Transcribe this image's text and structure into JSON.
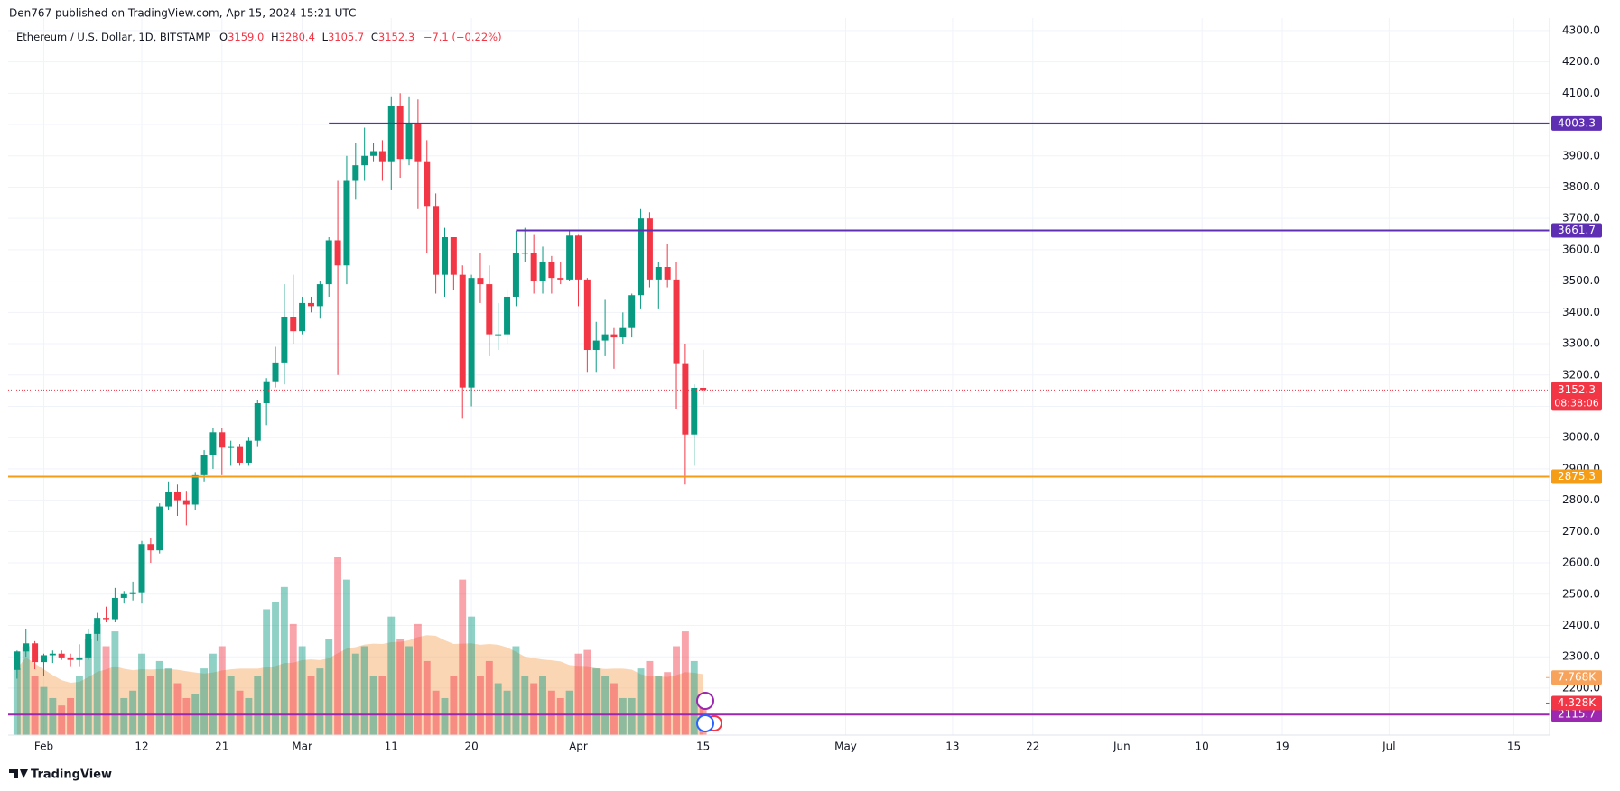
{
  "header": "Den767 published on TradingView.com, Apr 15, 2024 15:21 UTC",
  "footer": "TradingView",
  "chart_data": {
    "type": "candlestick",
    "title": "Ethereum / U.S. Dollar, 1D, BITSTAMP",
    "legend": {
      "keys": [
        "O",
        "H",
        "L",
        "C"
      ],
      "values": [
        "3159.0",
        "3280.4",
        "3105.7",
        "3152.3"
      ],
      "change": "−7.1 (−0.22%)"
    },
    "up_color": "#089981",
    "down_color": "#f23645",
    "x": [
      "2024-01-29",
      "2024-01-30",
      "2024-01-31",
      "2024-02-01",
      "2024-02-02",
      "2024-02-03",
      "2024-02-04",
      "2024-02-05",
      "2024-02-06",
      "2024-02-07",
      "2024-02-08",
      "2024-02-09",
      "2024-02-10",
      "2024-02-11",
      "2024-02-12",
      "2024-02-13",
      "2024-02-14",
      "2024-02-15",
      "2024-02-16",
      "2024-02-17",
      "2024-02-18",
      "2024-02-19",
      "2024-02-20",
      "2024-02-21",
      "2024-02-22",
      "2024-02-23",
      "2024-02-24",
      "2024-02-25",
      "2024-02-26",
      "2024-02-27",
      "2024-02-28",
      "2024-02-29",
      "2024-03-01",
      "2024-03-02",
      "2024-03-03",
      "2024-03-04",
      "2024-03-05",
      "2024-03-06",
      "2024-03-07",
      "2024-03-08",
      "2024-03-09",
      "2024-03-10",
      "2024-03-11",
      "2024-03-12",
      "2024-03-13",
      "2024-03-14",
      "2024-03-15",
      "2024-03-16",
      "2024-03-17",
      "2024-03-18",
      "2024-03-19",
      "2024-03-20",
      "2024-03-21",
      "2024-03-22",
      "2024-03-23",
      "2024-03-24",
      "2024-03-25",
      "2024-03-26",
      "2024-03-27",
      "2024-03-28",
      "2024-03-29",
      "2024-03-30",
      "2024-03-31",
      "2024-04-01",
      "2024-04-02",
      "2024-04-03",
      "2024-04-04",
      "2024-04-05",
      "2024-04-06",
      "2024-04-07",
      "2024-04-08",
      "2024-04-09",
      "2024-04-10",
      "2024-04-11",
      "2024-04-12",
      "2024-04-13",
      "2024-04-14",
      "2024-04-15"
    ],
    "open": [
      2258,
      2317,
      2343,
      2283,
      2305,
      2310,
      2298,
      2290,
      2298,
      2373,
      2424,
      2420,
      2488,
      2500,
      2506,
      2660,
      2640,
      2780,
      2826,
      2800,
      2786,
      2880,
      2944,
      3017,
      2968,
      2970,
      2920,
      2990,
      3110,
      3180,
      3240,
      3385,
      3340,
      3430,
      3420,
      3490,
      3630,
      3550,
      3820,
      3870,
      3900,
      3915,
      3880,
      4060,
      3890,
      4005,
      3880,
      3740,
      3520,
      3640,
      3520,
      3160,
      3510,
      3490,
      3330,
      3330,
      3450,
      3590,
      3590,
      3500,
      3560,
      3510,
      3505,
      3645,
      3505,
      3280,
      3310,
      3330,
      3320,
      3350,
      3455,
      3700,
      3505,
      3545,
      3505,
      3235,
      3010,
      3159
    ],
    "high": [
      2320,
      2390,
      2350,
      2310,
      2320,
      2320,
      2310,
      2340,
      2390,
      2440,
      2460,
      2520,
      2510,
      2540,
      2670,
      2680,
      2790,
      2860,
      2850,
      2830,
      2890,
      2960,
      3030,
      3030,
      2990,
      2980,
      3000,
      3120,
      3190,
      3290,
      3490,
      3520,
      3450,
      3450,
      3500,
      3640,
      3820,
      3900,
      3940,
      3990,
      3940,
      3950,
      4090,
      4100,
      4090,
      4080,
      3950,
      3780,
      3670,
      3640,
      3550,
      3520,
      3590,
      3550,
      3430,
      3470,
      3660,
      3670,
      3650,
      3610,
      3580,
      3560,
      3660,
      3650,
      3510,
      3370,
      3440,
      3350,
      3400,
      3460,
      3730,
      3720,
      3560,
      3620,
      3560,
      3300,
      3170,
      3280.4
    ],
    "low": [
      2230,
      2300,
      2260,
      2240,
      2280,
      2290,
      2270,
      2270,
      2290,
      2350,
      2410,
      2410,
      2470,
      2480,
      2470,
      2600,
      2630,
      2770,
      2750,
      2720,
      2770,
      2860,
      2900,
      2880,
      2910,
      2910,
      2910,
      2970,
      3040,
      3160,
      3170,
      3300,
      3330,
      3400,
      3380,
      3450,
      3200,
      3490,
      3760,
      3820,
      3880,
      3820,
      3790,
      3830,
      3870,
      3730,
      3590,
      3460,
      3450,
      3470,
      3060,
      3100,
      3430,
      3260,
      3280,
      3300,
      3420,
      3560,
      3460,
      3460,
      3460,
      3490,
      3500,
      3420,
      3210,
      3210,
      3260,
      3220,
      3300,
      3320,
      3410,
      3480,
      3410,
      3480,
      3090,
      2850,
      2910,
      3105.7
    ],
    "close": [
      2317,
      2343,
      2283,
      2305,
      2310,
      2298,
      2290,
      2298,
      2373,
      2424,
      2420,
      2488,
      2500,
      2506,
      2660,
      2640,
      2780,
      2826,
      2800,
      2786,
      2880,
      2944,
      3017,
      2968,
      2970,
      2920,
      2990,
      3110,
      3180,
      3240,
      3385,
      3340,
      3430,
      3420,
      3490,
      3630,
      3550,
      3820,
      3870,
      3900,
      3915,
      3880,
      4060,
      3890,
      4005,
      3880,
      3740,
      3520,
      3640,
      3520,
      3160,
      3510,
      3490,
      3330,
      3330,
      3450,
      3590,
      3590,
      3500,
      3560,
      3510,
      3505,
      3645,
      3505,
      3280,
      3310,
      3330,
      3320,
      3350,
      3455,
      3700,
      3505,
      3545,
      3505,
      3235,
      3010,
      3159,
      3152.3
    ],
    "volume": [
      9000,
      12000,
      8000,
      6500,
      5000,
      4000,
      5000,
      8000,
      13000,
      15000,
      12000,
      14000,
      5000,
      6000,
      11000,
      8000,
      10000,
      9000,
      7000,
      5000,
      5500,
      9000,
      11000,
      12000,
      8000,
      6000,
      5000,
      8000,
      17000,
      18000,
      20000,
      15000,
      12000,
      8000,
      9000,
      13000,
      24000,
      21000,
      11000,
      12000,
      8000,
      8000,
      16000,
      13000,
      12000,
      15000,
      10000,
      6000,
      5000,
      8000,
      21000,
      16000,
      8000,
      10000,
      7000,
      6000,
      12000,
      8000,
      7000,
      8000,
      6000,
      5000,
      6000,
      11000,
      11500,
      9000,
      8000,
      7000,
      5000,
      5000,
      9000,
      10000,
      8000,
      8500,
      12000,
      14000,
      10000,
      4328
    ],
    "volume_ma_color": "#f7a35c",
    "volume_ma_label": {
      "value": 7768,
      "label": "7.768K"
    },
    "volume_last_label": {
      "value": 4328,
      "label": "4.328K"
    },
    "xlim": [
      "2024-01-28",
      "2024-07-19"
    ],
    "xticks": [
      {
        "value": "2024-02-01",
        "label": "Feb"
      },
      {
        "value": "2024-02-12",
        "label": "12"
      },
      {
        "value": "2024-02-21",
        "label": "21"
      },
      {
        "value": "2024-03-01",
        "label": "Mar"
      },
      {
        "value": "2024-03-11",
        "label": "11"
      },
      {
        "value": "2024-03-20",
        "label": "20"
      },
      {
        "value": "2024-04-01",
        "label": "Apr"
      },
      {
        "value": "2024-04-15",
        "label": "15"
      },
      {
        "value": "2024-05-01",
        "label": "May"
      },
      {
        "value": "2024-05-13",
        "label": "13"
      },
      {
        "value": "2024-05-22",
        "label": "22"
      },
      {
        "value": "2024-06-01",
        "label": "Jun"
      },
      {
        "value": "2024-06-10",
        "label": "10"
      },
      {
        "value": "2024-06-19",
        "label": "19"
      },
      {
        "value": "2024-07-01",
        "label": "Jul"
      },
      {
        "value": "2024-07-15",
        "label": "15"
      }
    ],
    "ylim": [
      2050,
      4340
    ],
    "yticks": [
      {
        "value": 2200,
        "label": "2200.0"
      },
      {
        "value": 2300,
        "label": "2300.0"
      },
      {
        "value": 2400,
        "label": "2400.0"
      },
      {
        "value": 2500,
        "label": "2500.0"
      },
      {
        "value": 2600,
        "label": "2600.0"
      },
      {
        "value": 2700,
        "label": "2700.0"
      },
      {
        "value": 2800,
        "label": "2800.0"
      },
      {
        "value": 2900,
        "label": "2900.0"
      },
      {
        "value": 3000,
        "label": "3000.0"
      },
      {
        "value": 3100,
        "label": "3100.0"
      },
      {
        "value": 3200,
        "label": "3200.0"
      },
      {
        "value": 3300,
        "label": "3300.0"
      },
      {
        "value": 3400,
        "label": "3400.0"
      },
      {
        "value": 3500,
        "label": "3500.0"
      },
      {
        "value": 3600,
        "label": "3600.0"
      },
      {
        "value": 3700,
        "label": "3700.0"
      },
      {
        "value": 3800,
        "label": "3800.0"
      },
      {
        "value": 3900,
        "label": "3900.0"
      },
      {
        "value": 4000,
        "label": "4000.0"
      },
      {
        "value": 4100,
        "label": "4100.0"
      },
      {
        "value": 4200,
        "label": "4200.0"
      },
      {
        "value": 4300,
        "label": "4300.0"
      }
    ],
    "grid": true,
    "levels": [
      {
        "value": 4003.3,
        "start": "2024-03-04",
        "color": "#5e2fb3"
      },
      {
        "value": 3661.7,
        "start": "2024-03-25",
        "color": "#5e2fb3"
      },
      {
        "value": 2875.3,
        "color": "#f59d16"
      },
      {
        "value": 2115.7,
        "color": "#9c27b0"
      }
    ],
    "last_price": 3152.3,
    "countdown": "08:38:06",
    "last_price_color": "#f23645"
  }
}
